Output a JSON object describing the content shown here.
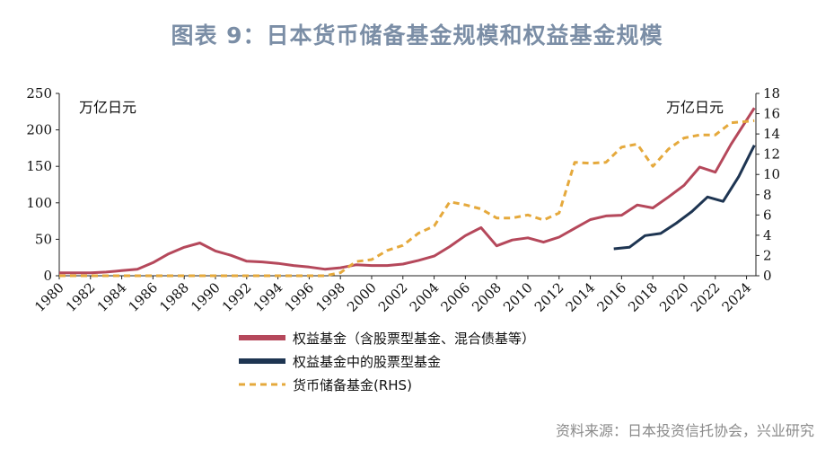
{
  "title": "图表 9：日本货币储备基金规模和权益基金规模",
  "source": "资料来源：日本投资信托协会，兴业研究",
  "chart_data": {
    "type": "line",
    "left_unit": "万亿日元",
    "right_unit": "万亿日元",
    "left_axis": {
      "ylim": [
        0,
        250
      ],
      "ticks": [
        0,
        50,
        100,
        150,
        200,
        250
      ]
    },
    "right_axis": {
      "ylim": [
        0,
        18
      ],
      "ticks": [
        0,
        2,
        4,
        6,
        8,
        10,
        12,
        14,
        16,
        18
      ]
    },
    "x_range": [
      1980,
      2024.6
    ],
    "x_ticks": [
      "1980",
      "1982",
      "1984",
      "1986",
      "1988",
      "1990",
      "1992",
      "1994",
      "1996",
      "1998",
      "2000",
      "2002",
      "2004",
      "2006",
      "2008",
      "2010",
      "2012",
      "2014",
      "2016",
      "2018",
      "2020",
      "2022",
      "2024"
    ],
    "grid": false,
    "series": [
      {
        "name": "权益基金（含股票型基金、混合债基等）",
        "axis": "left",
        "color": "#b5485b",
        "dash": "none",
        "x": [
          1980,
          1981,
          1982,
          1983,
          1984,
          1985,
          1986,
          1987,
          1988,
          1989,
          1990,
          1991,
          1992,
          1993,
          1994,
          1995,
          1996,
          1997,
          1998,
          1999,
          2000,
          2001,
          2002,
          2003,
          2004,
          2005,
          2006,
          2007,
          2008,
          2009,
          2010,
          2011,
          2012,
          2013,
          2014,
          2015,
          2016,
          2017,
          2018,
          2019,
          2020,
          2021,
          2022,
          2023,
          2024.5
        ],
        "values": [
          4,
          4,
          4,
          5,
          7,
          9,
          18,
          30,
          39,
          45,
          34,
          28,
          20,
          19,
          17,
          14,
          12,
          9,
          11,
          15,
          14,
          14,
          16,
          21,
          27,
          40,
          55,
          66,
          41,
          49,
          52,
          46,
          53,
          65,
          77,
          82,
          83,
          97,
          93,
          108,
          124,
          149,
          142,
          180,
          230
        ]
      },
      {
        "name": "权益基金中的股票型基金",
        "axis": "left",
        "color": "#1e3552",
        "dash": "none",
        "x": [
          2015.5,
          2016.5,
          2017.5,
          2018.5,
          2019.5,
          2020.5,
          2021.5,
          2022.5,
          2023.5,
          2024.5
        ],
        "values": [
          37,
          39,
          55,
          58,
          72,
          88,
          108,
          102,
          136,
          179
        ]
      },
      {
        "name": "货币储备基金(RHS)",
        "axis": "right",
        "color": "#e5a93c",
        "dash": "7,5",
        "x": [
          1980,
          1981,
          1982,
          1983,
          1984,
          1985,
          1986,
          1987,
          1988,
          1989,
          1990,
          1991,
          1992,
          1993,
          1994,
          1995,
          1996,
          1997,
          1998,
          1999,
          2000,
          2001,
          2002,
          2003,
          2004,
          2005,
          2006,
          2007,
          2008,
          2009,
          2010,
          2011,
          2012,
          2013,
          2014,
          2015,
          2016,
          2017,
          2018,
          2019,
          2020,
          2021,
          2022,
          2023,
          2024.5
        ],
        "values": [
          0,
          0,
          0,
          0,
          0,
          0,
          0,
          0,
          0,
          0,
          0,
          0,
          0,
          0,
          0,
          0,
          0,
          0,
          0.3,
          1.4,
          1.6,
          2.5,
          3.0,
          4.2,
          4.9,
          7.3,
          7.0,
          6.6,
          5.7,
          5.7,
          6.0,
          5.5,
          6.2,
          11.2,
          11.1,
          11.2,
          12.7,
          13.0,
          10.8,
          12.5,
          13.6,
          13.9,
          13.9,
          15.1,
          15.3
        ]
      }
    ]
  }
}
